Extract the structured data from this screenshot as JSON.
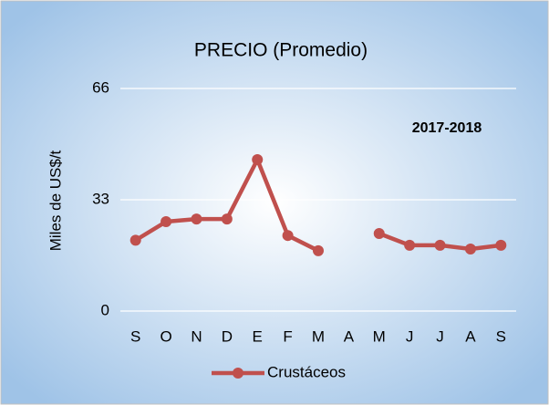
{
  "chart_data": {
    "type": "line",
    "title": "PRECIO (Promedio)",
    "y_label": "Miles de US$/t",
    "annotation": "2017-2018",
    "categories": [
      "S",
      "O",
      "N",
      "D",
      "E",
      "F",
      "M",
      "A",
      "M",
      "J",
      "J",
      "A",
      "S"
    ],
    "series": [
      {
        "name": "Crustáceos",
        "color": "#c0504d",
        "values": [
          21,
          26.5,
          27.3,
          27.3,
          44.9,
          22.4,
          17.9,
          null,
          23,
          19.5,
          19.5,
          18.4,
          19.5
        ]
      }
    ],
    "ylim": [
      0,
      66
    ],
    "yticks": [
      0,
      33,
      66
    ],
    "grid": true,
    "legend": "bottom"
  }
}
